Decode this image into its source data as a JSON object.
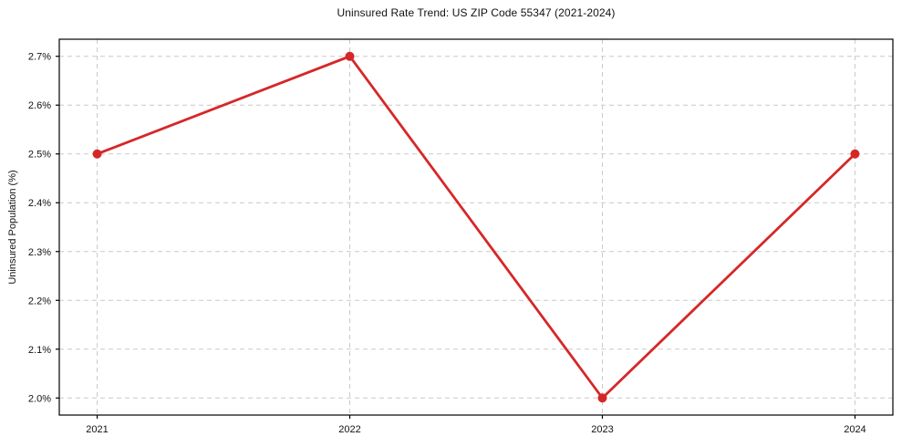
{
  "figure": {
    "background_color": "#ffffff",
    "title": "Uninsured Rate Trend: US ZIP Code 55347 (2021-2024)"
  },
  "chart_data": {
    "type": "line",
    "title": "Uninsured Rate Trend: US ZIP Code 55347 (2021-2024)",
    "xlabel": "",
    "ylabel": "Uninsured Population (%)",
    "x": [
      2021,
      2022,
      2023,
      2024
    ],
    "series": [
      {
        "name": "uninsured-rate",
        "values": [
          2.5,
          2.7,
          2.0,
          2.5
        ],
        "color": "#d62728",
        "marker": "circle",
        "marker_radius": 5,
        "line_width": 2.8
      }
    ],
    "xtick_labels": [
      "2021",
      "2022",
      "2023",
      "2024"
    ],
    "ytick_values": [
      2.0,
      2.1,
      2.2,
      2.3,
      2.4,
      2.5,
      2.6,
      2.7
    ],
    "ytick_labels": [
      "2.0%",
      "2.1%",
      "2.2%",
      "2.3%",
      "2.4%",
      "2.5%",
      "2.6%",
      "2.7%"
    ],
    "xlim": [
      2020.85,
      2024.15
    ],
    "ylim": [
      1.965,
      2.735
    ],
    "grid": {
      "visible": true,
      "style": "dashed",
      "color": "#c9c9c9"
    },
    "legend": "none",
    "axis_color": "#000000",
    "text_color": "#111111"
  }
}
